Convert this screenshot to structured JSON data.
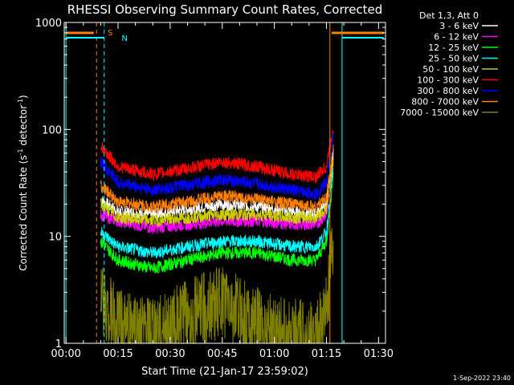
{
  "chart_data": {
    "type": "line",
    "title": "RHESSI Observing Summary Count Rates, Corrected",
    "xlabel": "Start Time (21-Jan-17 23:59:02)",
    "ylabel_main": "Corrected Count Rate (s",
    "ylabel_sup1": "-1",
    "ylabel_mid": " detector",
    "ylabel_sup2": "-1",
    "ylabel_end": ")",
    "yscale": "log",
    "ylim": [
      1,
      1000
    ],
    "xlim_minutes": [
      -0.5,
      92
    ],
    "x_ticks": [
      {
        "label": "00:00",
        "min": 0
      },
      {
        "label": "00:15",
        "min": 15
      },
      {
        "label": "00:30",
        "min": 30
      },
      {
        "label": "00:45",
        "min": 45
      },
      {
        "label": "01:00",
        "min": 60
      },
      {
        "label": "01:15",
        "min": 75
      },
      {
        "label": "01:30",
        "min": 90
      }
    ],
    "y_ticks": [
      {
        "label": "1",
        "value": 1
      },
      {
        "label": "10",
        "value": 10
      },
      {
        "label": "100",
        "value": 100
      },
      {
        "label": "1000",
        "value": 1000
      }
    ],
    "legend_title": "Det 1,3, Att 0",
    "legend_placement": "right",
    "series": [
      {
        "name": "3 - 6 keV",
        "color": "#ffffff",
        "x": [
          10,
          15,
          25,
          35,
          45,
          55,
          65,
          72,
          75,
          77
        ],
        "y": [
          22,
          17,
          16,
          18,
          20,
          19,
          17,
          16,
          20,
          60
        ]
      },
      {
        "name": "6 - 12 keV",
        "color": "#ff00ff",
        "x": [
          10,
          15,
          25,
          35,
          45,
          55,
          65,
          72,
          75,
          77
        ],
        "y": [
          16,
          14,
          12,
          13,
          14,
          14,
          13,
          13,
          16,
          50
        ]
      },
      {
        "name": "12 - 25 keV",
        "color": "#00ff00",
        "x": [
          10,
          15,
          25,
          35,
          45,
          55,
          65,
          72,
          75,
          77
        ],
        "y": [
          9,
          6,
          5,
          6,
          7,
          7,
          6,
          6,
          9,
          40
        ]
      },
      {
        "name": "25 - 50 keV",
        "color": "#00ffff",
        "x": [
          10,
          15,
          25,
          35,
          45,
          55,
          65,
          72,
          75,
          77
        ],
        "y": [
          11,
          8,
          7,
          8,
          9,
          9,
          8,
          8,
          11,
          45
        ]
      },
      {
        "name": "50 - 100 keV",
        "color": "#cccc00",
        "x": [
          10,
          15,
          25,
          35,
          45,
          55,
          65,
          72,
          75,
          77
        ],
        "y": [
          20,
          15,
          14,
          15,
          16,
          16,
          15,
          15,
          18,
          55
        ]
      },
      {
        "name": "100 - 300 keV",
        "color": "#ff0000",
        "x": [
          10,
          15,
          25,
          35,
          45,
          55,
          65,
          72,
          75,
          77
        ],
        "y": [
          70,
          45,
          38,
          43,
          50,
          45,
          38,
          36,
          45,
          110
        ]
      },
      {
        "name": "300 - 800 keV",
        "color": "#0000ff",
        "x": [
          10,
          15,
          25,
          35,
          45,
          55,
          65,
          72,
          75,
          77
        ],
        "y": [
          50,
          32,
          27,
          30,
          34,
          31,
          27,
          25,
          32,
          90
        ]
      },
      {
        "name": "800 - 7000 keV",
        "color": "#ff8000",
        "x": [
          10,
          15,
          25,
          35,
          45,
          55,
          65,
          72,
          75,
          77
        ],
        "y": [
          30,
          21,
          19,
          21,
          24,
          22,
          20,
          19,
          23,
          70
        ]
      },
      {
        "name": "7000 - 15000 keV",
        "color": "#808000",
        "x": [
          10,
          15,
          25,
          35,
          45,
          55,
          65,
          72,
          75,
          77
        ],
        "y": [
          2.5,
          1.5,
          1.2,
          1.8,
          2.5,
          1.5,
          1.2,
          1.1,
          2.0,
          8
        ]
      }
    ],
    "annotations": [
      {
        "text": "S",
        "color": "#ff8000",
        "min": 12
      },
      {
        "text": "N",
        "color": "#00ffff",
        "min": 16
      }
    ],
    "markers": {
      "orange_dashed_min": [
        8.8,
        92
      ],
      "orange_solid_min": [
        76
      ],
      "cyan_solid_min": [
        0,
        79.5
      ],
      "cyan_dashed_min": [
        11
      ],
      "orange_bar_min": [
        [
          0,
          8
        ],
        [
          76.5,
          91.5
        ]
      ],
      "cyan_bar_min": [
        [
          0,
          11
        ],
        [
          79.5,
          91.5
        ]
      ]
    },
    "grid": false
  },
  "footer": {
    "timestamp": "1-Sep-2022 23:40"
  }
}
